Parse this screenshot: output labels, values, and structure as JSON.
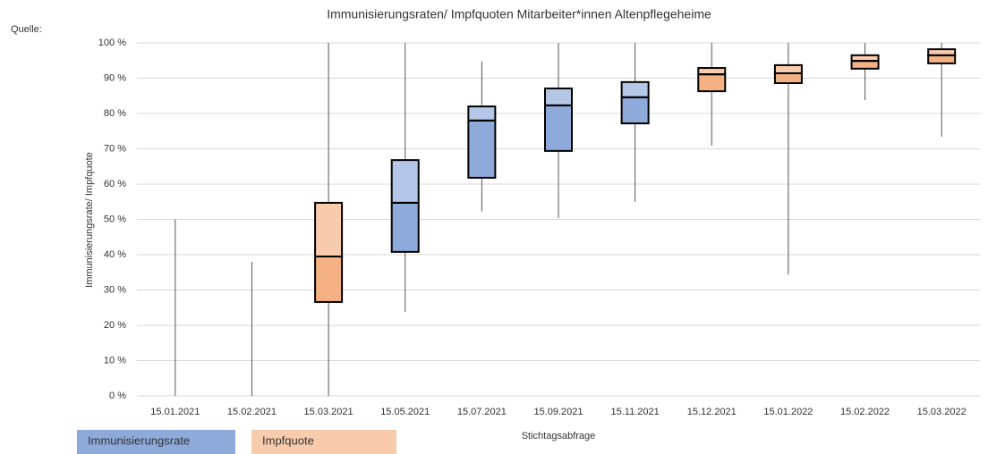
{
  "chart_data": {
    "type": "box",
    "title": "Immunisierungsraten/ Impfquoten Mitarbeiter*innen Altenpflegeheime",
    "source_label": "Quelle:",
    "ylabel": "Immunisierungsrate/ Impfquote",
    "xlabel": "Stichtagsabfrage",
    "categories": [
      "15.01.2021",
      "15.02.2021",
      "15.03.2021",
      "15.05.2021",
      "15.07.2021",
      "15.09.2021",
      "15.11.2021",
      "15.12.2021",
      "15.01.2022",
      "15.02.2022",
      "15.03.2022"
    ],
    "legend": [
      {
        "name": "Immunisierungsrate",
        "color": "#8eaadb",
        "light": "#b4c7e7"
      },
      {
        "name": "Impfquote",
        "color": "#f4b183",
        "light": "#f8cbad"
      }
    ],
    "boxes": [
      {
        "min": 0,
        "q1": null,
        "median": null,
        "q3": null,
        "max": 50,
        "group": 1
      },
      {
        "min": 0,
        "q1": null,
        "median": null,
        "q3": null,
        "max": 38,
        "group": 1
      },
      {
        "min": 0,
        "q1": 26.6,
        "median": 39.5,
        "q3": 54.7,
        "max": 100,
        "group": 1
      },
      {
        "min": 23.8,
        "q1": 40.8,
        "median": 54.7,
        "q3": 66.8,
        "max": 100,
        "group": 0
      },
      {
        "min": 52.2,
        "q1": 61.8,
        "median": 78,
        "q3": 82,
        "max": 94.7,
        "group": 0
      },
      {
        "min": 50.4,
        "q1": 69.4,
        "median": 82.3,
        "q3": 87.1,
        "max": 100,
        "group": 0
      },
      {
        "min": 55,
        "q1": 77.2,
        "median": 84.6,
        "q3": 88.9,
        "max": 100,
        "group": 0
      },
      {
        "min": 70.9,
        "q1": 86.3,
        "median": 91.1,
        "q3": 92.9,
        "max": 100,
        "group": 1
      },
      {
        "min": 34.4,
        "q1": 88.6,
        "median": 91.4,
        "q3": 93.7,
        "max": 100,
        "group": 1
      },
      {
        "min": 83.8,
        "q1": 92.7,
        "median": 94.9,
        "q3": 96.5,
        "max": 100,
        "group": 1
      },
      {
        "min": 73.4,
        "q1": 94.2,
        "median": 96.5,
        "q3": 98.2,
        "max": 100,
        "group": 1
      }
    ],
    "ylim": [
      0,
      100
    ],
    "yticks": [
      {
        "value": 0,
        "label": "0 %"
      },
      {
        "value": 10,
        "label": "10 %"
      },
      {
        "value": 20,
        "label": "20 %"
      },
      {
        "value": 30,
        "label": "30 %"
      },
      {
        "value": 40,
        "label": "40 %"
      },
      {
        "value": 50,
        "label": "50 %"
      },
      {
        "value": 60,
        "label": "60 %"
      },
      {
        "value": 70,
        "label": "70 %"
      },
      {
        "value": 80,
        "label": "80 %"
      },
      {
        "value": 90,
        "label": "90 %"
      },
      {
        "value": 100,
        "label": "100 %"
      }
    ],
    "grid": true
  }
}
